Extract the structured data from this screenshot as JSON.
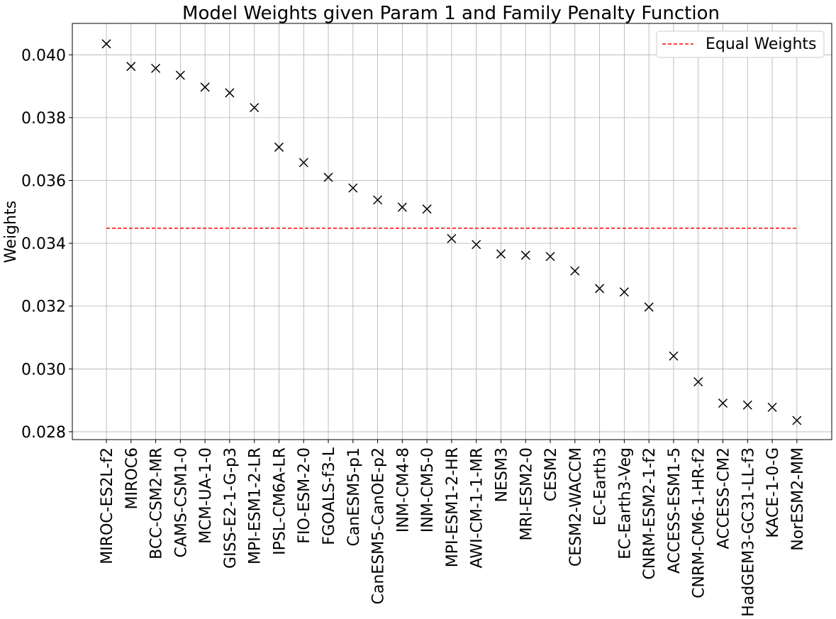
{
  "chart_data": {
    "type": "scatter",
    "title": "Model Weights given Param 1 and Family Penalty Function",
    "xlabel": "",
    "ylabel": "Weights",
    "ylim": [
      0.02775,
      0.041
    ],
    "yticks": [
      0.028,
      0.03,
      0.032,
      0.034,
      0.036,
      0.038,
      0.04
    ],
    "ytick_labels": [
      "0.028",
      "0.030",
      "0.032",
      "0.034",
      "0.036",
      "0.038",
      "0.040"
    ],
    "grid": true,
    "legend_position": "top-right",
    "categories": [
      "MIROC-ES2L-f2",
      "MIROC6",
      "BCC-CSM2-MR",
      "CAMS-CSM1-0",
      "MCM-UA-1-0",
      "GISS-E2-1-G-p3",
      "MPI-ESM1-2-LR",
      "IPSL-CM6A-LR",
      "FIO-ESM-2-0",
      "FGOALS-f3-L",
      "CanESM5-p1",
      "CanESM5-CanOE-p2",
      "INM-CM4-8",
      "INM-CM5-0",
      "MPI-ESM1-2-HR",
      "AWI-CM-1-1-MR",
      "NESM3",
      "MRI-ESM2-0",
      "CESM2",
      "CESM2-WACCM",
      "EC-Earth3",
      "EC-Earth3-Veg",
      "CNRM-ESM2-1-f2",
      "ACCESS-ESM1-5",
      "CNRM-CM6-1-HR-f2",
      "ACCESS-CM2",
      "HadGEM3-GC31-LL-f3",
      "KACE-1-0-G",
      "NorESM2-MM"
    ],
    "series": [
      {
        "marker": "x",
        "color": "#000000",
        "values": [
          0.04035,
          0.03963,
          0.03957,
          0.03935,
          0.03897,
          0.03879,
          0.03832,
          0.03706,
          0.03657,
          0.0361,
          0.03576,
          0.03538,
          0.03515,
          0.03509,
          0.03415,
          0.03396,
          0.03366,
          0.03362,
          0.03358,
          0.03312,
          0.03256,
          0.03245,
          0.03197,
          0.03041,
          0.02959,
          0.02891,
          0.02885,
          0.02878,
          0.02836
        ]
      },
      {
        "name": "Equal Weights",
        "line_style": "dashed",
        "color": "#ff0000",
        "value": 0.03448
      }
    ]
  }
}
